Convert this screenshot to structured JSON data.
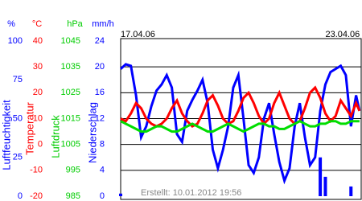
{
  "chart_data": {
    "type": "line",
    "created": "Erstellt: 10.01.2012 19:56",
    "x": [
      0,
      0.15,
      0.3,
      0.45,
      0.6,
      0.75,
      0.9,
      1.05,
      1.2,
      1.35,
      1.5,
      1.65,
      1.8,
      1.95,
      2.1,
      2.25,
      2.4,
      2.55,
      2.7,
      2.85,
      3,
      3.15,
      3.3,
      3.45,
      3.6,
      3.75,
      3.9,
      4.05,
      4.2,
      4.35,
      4.5,
      4.65,
      4.8,
      4.95,
      5.1,
      5.25,
      5.4,
      5.55,
      5.7,
      5.85,
      6,
      6.15,
      6.3,
      6.45,
      6.6,
      6.75,
      6.9,
      7.0
    ],
    "xlim": [
      0,
      7.05
    ],
    "xticks": [
      {
        "value": 0,
        "label": "17.04.06"
      },
      {
        "value": 6,
        "label": "23.04.06"
      }
    ],
    "axes": [
      {
        "unit": "%",
        "title": "Luftfeuchtigkeit",
        "color": "#0000ff",
        "ylim": [
          0,
          100
        ],
        "yticks": [
          0,
          25,
          50,
          75,
          100
        ]
      },
      {
        "unit": "°C",
        "title": "Temperatur",
        "color": "#ff0000",
        "ylim": [
          -20,
          40
        ],
        "yticks": [
          -20,
          -10,
          0,
          10,
          20,
          30,
          40
        ]
      },
      {
        "unit": "hPa",
        "title": "Luftdruck",
        "color": "#00cc00",
        "ylim": [
          985,
          1045
        ],
        "yticks": [
          985,
          995,
          1005,
          1015,
          1025,
          1035,
          1045
        ]
      },
      {
        "unit": "mm/h",
        "title": "Niederschlag",
        "color": "#0000ff",
        "ylim": [
          0,
          24
        ],
        "yticks": [
          0,
          4,
          8,
          12,
          16,
          20,
          24
        ]
      }
    ],
    "grid_axis": 3,
    "series": [
      {
        "kind": "line",
        "axis": 0,
        "color": "#0000ff",
        "values": [
          82,
          85,
          84,
          65,
          38,
          45,
          58,
          68,
          72,
          78,
          70,
          40,
          35,
          55,
          62,
          68,
          75,
          60,
          30,
          18,
          30,
          45,
          70,
          78,
          50,
          20,
          15,
          25,
          50,
          60,
          40,
          22,
          10,
          18,
          45,
          60,
          38,
          20,
          25,
          55,
          72,
          80,
          82,
          84,
          78,
          45,
          65,
          55
        ]
      },
      {
        "kind": "line",
        "axis": 1,
        "color": "#ff0000",
        "values": [
          10,
          9,
          12,
          16,
          14,
          10,
          8,
          7,
          8,
          10,
          14,
          17,
          12,
          9,
          7,
          8,
          12,
          17,
          19,
          15,
          10,
          8,
          9,
          13,
          18,
          20,
          16,
          11,
          8,
          10,
          16,
          20,
          15,
          10,
          8,
          9,
          14,
          20,
          22,
          18,
          12,
          9,
          11,
          17,
          14,
          11,
          16,
          13
        ]
      },
      {
        "kind": "line",
        "axis": 2,
        "color": "#00dd00",
        "values": [
          1014,
          1013,
          1012,
          1011,
          1010,
          1010,
          1011,
          1012,
          1012,
          1011,
          1010,
          1010,
          1011,
          1012,
          1013,
          1012,
          1011,
          1010,
          1010,
          1011,
          1012,
          1013,
          1012,
          1011,
          1010,
          1011,
          1012,
          1013,
          1013,
          1012,
          1012,
          1011,
          1011,
          1012,
          1013,
          1014,
          1013,
          1012,
          1012,
          1013,
          1013,
          1014,
          1014,
          1013,
          1013,
          1014,
          1014,
          1014
        ]
      },
      {
        "kind": "bar",
        "axis": 3,
        "color": "#0000ff",
        "values": [
          0.4,
          0,
          0,
          0,
          0,
          0,
          0,
          0,
          0,
          0,
          0,
          0,
          0,
          0,
          0,
          0,
          0,
          0,
          0,
          0,
          0,
          0,
          0,
          0,
          0,
          0,
          0,
          0,
          0,
          0,
          0,
          0,
          0,
          0,
          0,
          0,
          0,
          0,
          0,
          6,
          3,
          0,
          0,
          0,
          0,
          1.5,
          0,
          0
        ]
      }
    ]
  }
}
